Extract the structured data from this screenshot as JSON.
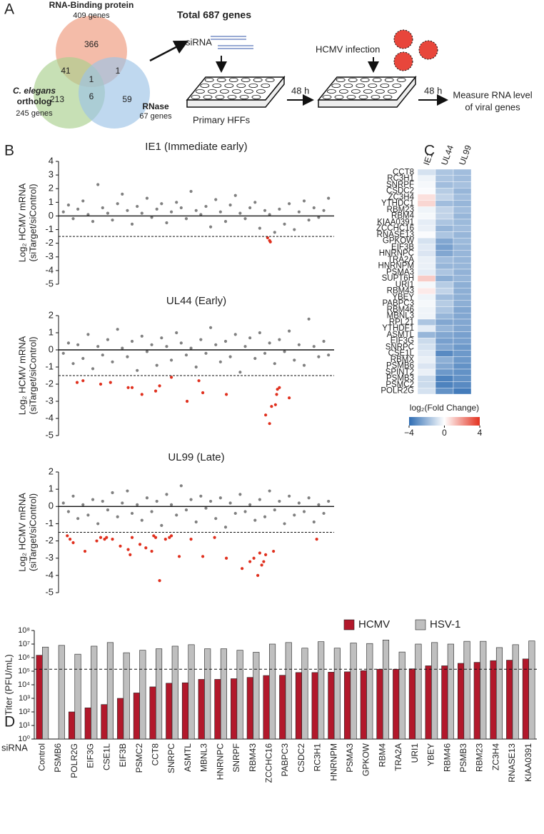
{
  "panel_labels": [
    "A",
    "B",
    "C",
    "D"
  ],
  "panel_a": {
    "venn": {
      "sets": [
        {
          "label": "RNA-Binding protein",
          "count_label": "409 genes",
          "color": "#ef9f85"
        },
        {
          "label": [
            "C. elegans",
            "ortholog"
          ],
          "count_label": "245 genes",
          "color": "#a9d08e"
        },
        {
          "label": "RNase",
          "count_label": "67 genes",
          "color": "#9dc3e6"
        }
      ],
      "regions": [
        366,
        41,
        1,
        1,
        213,
        6,
        59
      ]
    },
    "workflow": {
      "total": "Total 687 genes",
      "sirna": "siRNA",
      "cells": "Primary HFFs",
      "time1": "48 h",
      "infection": "HCMV infection",
      "time2": "48 h",
      "readout": [
        "Measure RNA level",
        "of viral genes"
      ]
    }
  },
  "chart_data": [
    {
      "type": "scatter",
      "title": "IE1 (Immediate early)",
      "y_label": [
        "Log₂ HCMV mRNA",
        "(siTarget/siControl)"
      ],
      "xlim": [
        0,
        687
      ],
      "ylim": [
        -5,
        4
      ],
      "yticks": [
        4,
        3,
        2,
        1,
        0,
        -1,
        -2,
        -3,
        -4,
        -5
      ],
      "threshold": -1.5,
      "series": [
        {
          "color": "#808080",
          "x": [
            5,
            18,
            30,
            42,
            55,
            68,
            80,
            93,
            105,
            118,
            130,
            143,
            155,
            168,
            180,
            193,
            205,
            218,
            230,
            243,
            255,
            268,
            280,
            293,
            305,
            318,
            330,
            343,
            355,
            368,
            380,
            393,
            405,
            418,
            430,
            443,
            455,
            468,
            480,
            493,
            505,
            518,
            530,
            543,
            555,
            568,
            580,
            593,
            605,
            618,
            630,
            643,
            655,
            668,
            680
          ],
          "values": [
            0.3,
            0.8,
            -0.2,
            0.5,
            1.1,
            0.1,
            -0.4,
            2.3,
            0.6,
            0.2,
            -0.3,
            0.9,
            1.6,
            0.4,
            -0.6,
            0.7,
            0.2,
            1.3,
            -0.1,
            0.5,
            0.9,
            -0.5,
            0.3,
            1.0,
            0.6,
            -0.2,
            1.8,
            0.4,
            0.1,
            0.7,
            -0.8,
            1.2,
            0.3,
            -0.4,
            0.8,
            1.5,
            0.2,
            -0.2,
            0.6,
            1.0,
            -0.9,
            0.4,
            0.1,
            -1.2,
            0.5,
            -0.6,
            0.9,
            -1.0,
            0.3,
            1.1,
            -0.3,
            0.6,
            -0.1,
            0.4,
            1.3
          ]
        },
        {
          "color": "#e0301e",
          "x": [
            525,
            530,
            532
          ],
          "values": [
            -1.6,
            -1.8,
            -1.9
          ]
        }
      ]
    },
    {
      "type": "scatter",
      "title": "UL44 (Early)",
      "y_label": [
        "Log₂ HCMV mRNA",
        "(siTarget/siControl)"
      ],
      "xlim": [
        0,
        687
      ],
      "ylim": [
        -5,
        2
      ],
      "yticks": [
        2,
        1,
        0,
        -1,
        -2,
        -3,
        -4,
        -5
      ],
      "threshold": -1.5,
      "series": [
        {
          "color": "#808080",
          "x": [
            5,
            18,
            30,
            42,
            55,
            68,
            80,
            93,
            105,
            118,
            130,
            143,
            155,
            168,
            180,
            193,
            205,
            218,
            230,
            243,
            255,
            268,
            280,
            293,
            305,
            318,
            330,
            343,
            355,
            368,
            380,
            393,
            405,
            418,
            430,
            443,
            455,
            468,
            480,
            493,
            505,
            518,
            530,
            543,
            555,
            568,
            580,
            593,
            605,
            618,
            630,
            643,
            655,
            668,
            680
          ],
          "values": [
            -0.2,
            0.4,
            -0.8,
            0.3,
            -0.5,
            0.9,
            -1.1,
            0.2,
            -0.3,
            0.6,
            -0.7,
            1.2,
            0.1,
            -0.4,
            0.5,
            -1.2,
            0.8,
            -0.1,
            0.3,
            -0.9,
            0.7,
            0.2,
            -0.6,
            1.0,
            0.4,
            -0.3,
            0.1,
            -1.0,
            0.6,
            -0.2,
            1.3,
            0.3,
            -0.7,
            0.5,
            -0.4,
            0.9,
            -1.3,
            0.2,
            0.7,
            -0.5,
            1.0,
            -0.2,
            0.4,
            -0.8,
            0.6,
            -0.1,
            1.1,
            -0.6,
            0.3,
            -0.9,
            1.8,
            0.2,
            -0.4,
            0.5,
            -0.3
          ]
        },
        {
          "color": "#e0301e",
          "x": [
            40,
            55,
            100,
            125,
            170,
            180,
            205,
            240,
            250,
            280,
            320,
            350,
            360,
            420,
            520,
            530,
            535,
            545,
            548,
            550,
            555,
            580
          ],
          "values": [
            -1.9,
            -1.8,
            -2.0,
            -1.9,
            -2.2,
            -2.2,
            -2.6,
            -2.4,
            -2.1,
            -1.6,
            -3.0,
            -1.8,
            -2.5,
            -2.6,
            -3.8,
            -4.3,
            -3.3,
            -3.2,
            -2.6,
            -2.3,
            -2.2,
            -2.8
          ]
        }
      ]
    },
    {
      "type": "scatter",
      "title": "UL99 (Late)",
      "y_label": [
        "Log₂ HCMV mRNA",
        "(siTarget/siControl)"
      ],
      "xlim": [
        0,
        687
      ],
      "ylim": [
        -5,
        2
      ],
      "yticks": [
        2,
        1,
        0,
        -1,
        -2,
        -3,
        -4,
        -5
      ],
      "threshold": -1.5,
      "series": [
        {
          "color": "#808080",
          "x": [
            5,
            18,
            30,
            42,
            55,
            68,
            80,
            93,
            105,
            118,
            130,
            143,
            155,
            168,
            180,
            193,
            205,
            218,
            230,
            243,
            255,
            268,
            280,
            293,
            305,
            318,
            330,
            343,
            355,
            368,
            380,
            393,
            405,
            418,
            430,
            443,
            455,
            468,
            480,
            493,
            505,
            518,
            530,
            543,
            555,
            568,
            580,
            593,
            605,
            618,
            630,
            643,
            655,
            668,
            680
          ],
          "values": [
            0.2,
            -0.3,
            0.6,
            -0.7,
            0.1,
            -0.5,
            0.4,
            -1.0,
            0.3,
            -0.2,
            0.8,
            -0.6,
            0.2,
            0.9,
            -0.4,
            0.1,
            -0.8,
            0.5,
            -0.3,
            0.3,
            -1.1,
            0.7,
            0.1,
            -0.5,
            1.2,
            -0.2,
            0.4,
            -0.9,
            0.6,
            -0.1,
            0.3,
            -0.7,
            0.5,
            -1.2,
            0.2,
            -0.4,
            0.7,
            -0.3,
            0.1,
            -0.8,
            0.4,
            -0.6,
            0.9,
            -0.2,
            0.3,
            -1.0,
            0.6,
            -0.5,
            0.2,
            -0.3,
            0.5,
            -0.9,
            0.1,
            -0.4,
            0.3
          ]
        },
        {
          "color": "#e0301e",
          "x": [
            15,
            22,
            30,
            60,
            90,
            100,
            110,
            115,
            130,
            150,
            170,
            175,
            180,
            200,
            215,
            230,
            235,
            240,
            250,
            265,
            275,
            280,
            300,
            330,
            360,
            390,
            420,
            460,
            480,
            490,
            500,
            505,
            510,
            515,
            520,
            540,
            650
          ],
          "values": [
            -1.7,
            -1.9,
            -2.1,
            -2.6,
            -2.0,
            -1.8,
            -1.9,
            -1.8,
            -1.9,
            -2.3,
            -2.5,
            -2.8,
            -1.8,
            -2.2,
            -2.4,
            -2.6,
            -1.7,
            -1.8,
            -4.3,
            -1.9,
            -1.8,
            -1.7,
            -2.9,
            -1.9,
            -2.9,
            -1.8,
            -3.0,
            -3.6,
            -3.2,
            -3.0,
            -4.0,
            -2.7,
            -3.4,
            -3.2,
            -2.8,
            -2.6,
            -1.9
          ]
        }
      ]
    },
    {
      "type": "heatmap",
      "columns": [
        "IE1",
        "UL44",
        "UL99"
      ],
      "rows": [
        "CCT8",
        "RC3H1",
        "SNRPF",
        "CSDC2",
        "ZC3H4",
        "YTHDC1",
        "RBM23",
        "RBM4",
        "KIAA0391",
        "ZCCHC16",
        "RNASE13",
        "GPKOW",
        "EIF3B",
        "HNRNPC",
        "TRA2A",
        "HNRNPM",
        "PSMA3",
        "SUPT6H",
        "URI1",
        "RBM43",
        "YBEY",
        "PABPC3",
        "RBM46",
        "MBNL3",
        "RPL21",
        "YTHDF1",
        "ASMTL",
        "EIF3G",
        "SNRPC",
        "CSE1L",
        "RBMX",
        "PSMB6",
        "SPINT2",
        "PSMB3",
        "PSMC2",
        "POLR2G"
      ],
      "values": [
        [
          -0.8,
          -1.6,
          -1.8
        ],
        [
          -0.3,
          -1.6,
          -1.8
        ],
        [
          -0.2,
          -1.8,
          -1.7
        ],
        [
          -0.1,
          -1.4,
          -2.0
        ],
        [
          0.6,
          -1.2,
          -1.8
        ],
        [
          0.8,
          -1.8,
          -2.0
        ],
        [
          -0.3,
          -1.2,
          -1.8
        ],
        [
          -0.2,
          -1.2,
          -2.0
        ],
        [
          -0.5,
          -1.6,
          -1.9
        ],
        [
          -0.4,
          -2.0,
          -1.8
        ],
        [
          -0.1,
          -1.6,
          -2.0
        ],
        [
          -0.8,
          -2.4,
          -1.9
        ],
        [
          -0.6,
          -2.6,
          -2.0
        ],
        [
          -0.7,
          -2.4,
          -2.0
        ],
        [
          -0.4,
          -1.8,
          -2.0
        ],
        [
          -0.4,
          -2.0,
          -2.0
        ],
        [
          -0.5,
          -1.6,
          -2.1
        ],
        [
          1.0,
          -2.2,
          -2.0
        ],
        [
          -0.2,
          -1.4,
          -2.2
        ],
        [
          0.4,
          -1.2,
          -2.2
        ],
        [
          -0.3,
          -1.8,
          -2.2
        ],
        [
          -0.2,
          -1.4,
          -2.2
        ],
        [
          -0.3,
          -1.6,
          -2.4
        ],
        [
          -0.3,
          -2.0,
          -2.4
        ],
        [
          -1.6,
          -2.4,
          -2.4
        ],
        [
          -0.5,
          -2.0,
          -2.4
        ],
        [
          -2.0,
          -2.4,
          -2.6
        ],
        [
          -1.0,
          -2.6,
          -2.6
        ],
        [
          -0.8,
          -2.4,
          -2.8
        ],
        [
          -0.6,
          -3.2,
          -2.8
        ],
        [
          -0.4,
          -2.2,
          -2.8
        ],
        [
          -0.7,
          -2.4,
          -3.0
        ],
        [
          -0.4,
          -2.8,
          -3.0
        ],
        [
          -1.0,
          -3.4,
          -3.0
        ],
        [
          -1.0,
          -3.4,
          -3.2
        ],
        [
          -0.8,
          -3.0,
          -3.6
        ]
      ],
      "colormap": [
        "#2f6db3",
        "#ffffff",
        "#e3311f"
      ],
      "clim": [
        -4,
        4
      ],
      "colorbar_label": "log₂(Fold Change)",
      "colorbar_ticks": [
        {
          "value": -4,
          "label": "−4"
        },
        0,
        4
      ]
    },
    {
      "type": "bar",
      "y_label": "Titer (PFU/mL)",
      "x_label": "siRNA",
      "log_scale": true,
      "legend": "top-right",
      "categories": [
        "Control",
        "PSMB6",
        "POLR2G",
        "EIF3G",
        "CSE1L",
        "EIF3B",
        "PSMC2",
        "CCT8",
        "SNRPC",
        "ASMTL",
        "MBNL3",
        "HNRNPC",
        "SNRPF",
        "RBM43",
        "ZCCHC16",
        "PABPC3",
        "CSDC2",
        "RC3H1",
        "HNRNPM",
        "PSMA3",
        "GPKOW",
        "RBM4",
        "TRA2A",
        "URI1",
        "YBEY",
        "RBM46",
        "PSMB3",
        "RBM23",
        "ZC3H4",
        "RNASE13",
        "KIAA0391"
      ],
      "series": [
        {
          "name": "HCMV",
          "color": "#b2182b",
          "values": [
            1500000,
            null,
            100,
            200,
            350,
            1000,
            2500,
            7000,
            13000,
            14000,
            25000,
            25000,
            28000,
            35000,
            48000,
            50000,
            80000,
            80000,
            85000,
            90000,
            110000,
            140000,
            140000,
            150000,
            250000,
            250000,
            380000,
            450000,
            600000,
            650000,
            800000
          ]
        },
        {
          "name": "HSV-1",
          "color": "#bfbfbf",
          "values": [
            6000000,
            8000000,
            1800000,
            7000000,
            13000000,
            2300000,
            3500000,
            4500000,
            7000000,
            9000000,
            4500000,
            4500000,
            3500000,
            2500000,
            10000000,
            13000000,
            5000000,
            15000000,
            5000000,
            12000000,
            11000000,
            20000000,
            2600000,
            10000000,
            13000000,
            10000000,
            16000000,
            16000000,
            5500000,
            9000000,
            17000000
          ]
        }
      ],
      "ylim": [
        1,
        100000000
      ],
      "yticks": [
        {
          "value": 1,
          "label": "10⁰"
        },
        {
          "value": 10,
          "label": "10¹"
        },
        {
          "value": 100,
          "label": "10²"
        },
        {
          "value": 1000,
          "label": "10³"
        },
        {
          "value": 10000,
          "label": "10⁴"
        },
        {
          "value": 100000,
          "label": "10⁵"
        },
        {
          "value": 1000000,
          "label": "10⁶"
        },
        {
          "value": 10000000,
          "label": "10⁷"
        },
        {
          "value": 100000000,
          "label": "10⁸"
        }
      ],
      "threshold": 140000
    }
  ]
}
